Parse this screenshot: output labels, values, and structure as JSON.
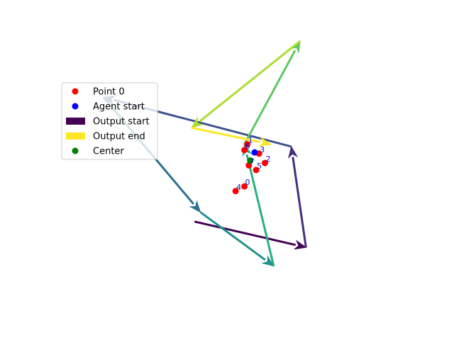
{
  "chart_data": {
    "type": "scatter",
    "title": "",
    "xlabel": "",
    "ylabel": "",
    "axes_visible": false,
    "xlim": [
      -6.0,
      6.0
    ],
    "ylim": [
      -6.0,
      5.0
    ],
    "legend": {
      "placement": "upper-left",
      "entries": [
        {
          "label": "Point 0",
          "marker": "circle",
          "color": "#ff0000"
        },
        {
          "label": "Agent start",
          "marker": "circle",
          "color": "#0000ff"
        },
        {
          "label": "Output start",
          "marker": "bar",
          "color": "#440154"
        },
        {
          "label": "Output end",
          "marker": "bar",
          "color": "#fde725"
        },
        {
          "label": "Center",
          "marker": "circle",
          "color": "#008000"
        }
      ]
    },
    "points": [
      {
        "label": "0",
        "x": 0.4,
        "y": -1.2
      },
      {
        "label": "1",
        "x": 0.5,
        "y": 0.6
      },
      {
        "label": "2",
        "x": 1.1,
        "y": -0.2
      },
      {
        "label": "3",
        "x": 0.9,
        "y": 0.2
      },
      {
        "label": "4",
        "x": 0.1,
        "y": -1.4
      },
      {
        "label": "5",
        "x": 0.8,
        "y": -0.5
      },
      {
        "label": "6",
        "x": 0.4,
        "y": 0.35
      },
      {
        "label": "7",
        "x": 0.55,
        "y": -0.3
      }
    ],
    "agent_start": {
      "x": 0.75,
      "y": 0.25
    },
    "center": {
      "x": 0.6,
      "y": -0.1
    },
    "segment_colors": [
      "#440154",
      "#472f7d",
      "#3b528b",
      "#2c728e",
      "#21918c",
      "#28ae80",
      "#5ec962",
      "#addc30",
      "#fde725"
    ],
    "trajectory": [
      {
        "x": -1.3,
        "y": -2.7
      },
      {
        "x": 2.5,
        "y": -3.8
      },
      {
        "x": 2.0,
        "y": 0.5
      },
      {
        "x": -4.4,
        "y": 2.6
      },
      {
        "x": -1.1,
        "y": -2.3
      },
      {
        "x": 1.4,
        "y": -4.6
      },
      {
        "x": 0.4,
        "y": 0.6
      },
      {
        "x": 2.3,
        "y": 5.0
      },
      {
        "x": -1.4,
        "y": 1.3
      },
      {
        "x": 1.3,
        "y": 0.6
      }
    ]
  }
}
